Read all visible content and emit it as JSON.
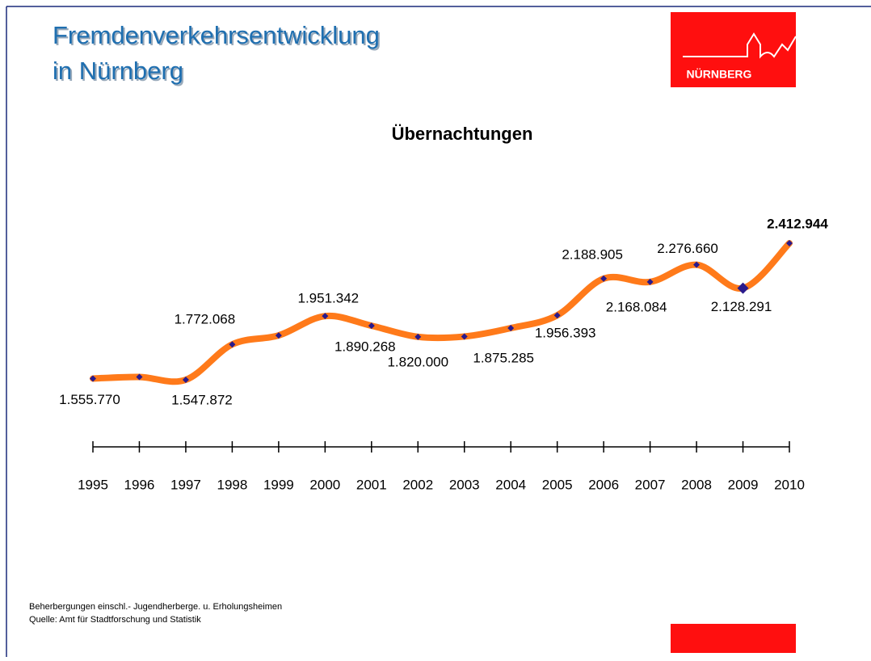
{
  "header": {
    "title_lines": [
      "Fremdenverkehrsentwicklung",
      "in Nürnberg"
    ]
  },
  "logo": {
    "text": "NÜRNBERG"
  },
  "chart_data": {
    "type": "line",
    "title": "Übernachtungen",
    "color": "#ff7a1a",
    "marker_color": "#2a1a8c",
    "categories": [
      "1995",
      "1996",
      "1997",
      "1998",
      "1999",
      "2000",
      "2001",
      "2002",
      "2003",
      "2004",
      "2005",
      "2006",
      "2007",
      "2008",
      "2009",
      "2010"
    ],
    "values": [
      1555770,
      1566000,
      1547872,
      1772068,
      1829000,
      1951342,
      1890268,
      1820000,
      1822000,
      1875285,
      1956393,
      2188905,
      2168084,
      2276660,
      2128291,
      2412944
    ],
    "value_labels": [
      "1.555.770",
      null,
      "1.547.872",
      "1.772.068",
      null,
      "1.951.342",
      "1.890.268",
      "1.820.000",
      null,
      "1.875.285",
      "1.956.393",
      "2.188.905",
      "2.168.084",
      "2.276.660",
      "2.128.291",
      "2.412.944"
    ]
  },
  "footnotes": [
    "Beherbergungen einschl.- Jugendherberge. u. Erholungsheimen",
    "Quelle: Amt für Stadtforschung und Statistik"
  ]
}
